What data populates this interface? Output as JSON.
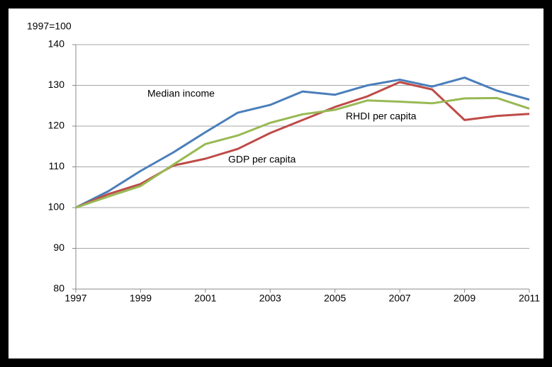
{
  "chart_data": {
    "type": "line",
    "y_label": "1997=100",
    "x": [
      1997,
      1998,
      1999,
      2000,
      2001,
      2002,
      2003,
      2004,
      2005,
      2006,
      2007,
      2008,
      2009,
      2010,
      2011
    ],
    "xlim": [
      1997,
      2011
    ],
    "xticks": [
      1997,
      1999,
      2001,
      2003,
      2005,
      2007,
      2009,
      2011
    ],
    "ylim": [
      80,
      140
    ],
    "yticks": [
      80,
      90,
      100,
      110,
      120,
      130,
      140
    ],
    "grid": true,
    "series": [
      {
        "name": "Median income",
        "color": "#4a7ebb",
        "values": [
          100,
          104,
          109,
          113.5,
          118.5,
          123.3,
          125.2,
          128.5,
          127.7,
          130,
          131.4,
          129.7,
          131.9,
          128.7,
          126.5
        ]
      },
      {
        "name": "RHDI per capita",
        "color": "#be4b48",
        "values": [
          100,
          103.3,
          105.8,
          110.3,
          112,
          114.4,
          118.3,
          121.5,
          124.7,
          127.3,
          130.8,
          129,
          121.5,
          122.5,
          123
        ]
      },
      {
        "name": "GDP per capita",
        "color": "#98b954",
        "values": [
          100,
          102.7,
          105.3,
          110.5,
          115.6,
          117.7,
          120.8,
          122.9,
          124,
          126.3,
          126,
          125.6,
          126.8,
          126.9,
          124.3
        ]
      }
    ]
  }
}
